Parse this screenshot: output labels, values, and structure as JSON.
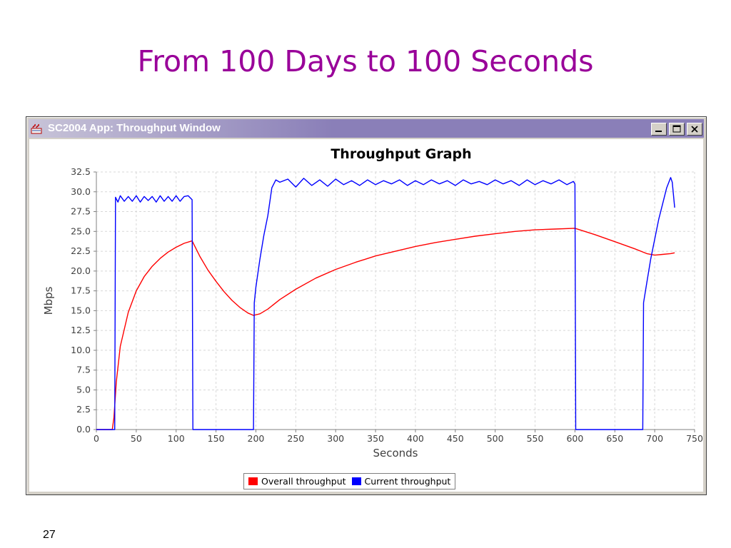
{
  "slide": {
    "title": "From 100 Days to 100 Seconds",
    "page_number": "27"
  },
  "window": {
    "title": "SC2004 App: Throughput Window",
    "icon": "java-app-icon",
    "controls": [
      "minimize",
      "maximize",
      "close"
    ]
  },
  "colors": {
    "overall": "#ff0000",
    "current": "#0000ff",
    "title_text": "#990099"
  },
  "chart_data": {
    "type": "line",
    "title": "Throughput Graph",
    "xlabel": "Seconds",
    "ylabel": "Mbps",
    "xlim": [
      0,
      750
    ],
    "ylim": [
      0,
      32.5
    ],
    "xticks": [
      "0",
      "50",
      "100",
      "150",
      "200",
      "250",
      "300",
      "350",
      "400",
      "450",
      "500",
      "550",
      "600",
      "650",
      "700",
      "750"
    ],
    "yticks": [
      "0.0",
      "2.5",
      "5.0",
      "7.5",
      "10.0",
      "12.5",
      "15.0",
      "17.5",
      "20.0",
      "22.5",
      "25.0",
      "27.5",
      "30.0",
      "32.5"
    ],
    "grid": true,
    "legend_position": "bottom-center",
    "series": [
      {
        "name": "Overall throughput",
        "color": "#ff0000",
        "x": [
          0,
          20,
          22,
          25,
          30,
          40,
          50,
          60,
          70,
          80,
          90,
          100,
          110,
          120,
          130,
          140,
          150,
          160,
          170,
          180,
          190,
          197,
          205,
          215,
          230,
          250,
          275,
          300,
          325,
          350,
          375,
          400,
          425,
          450,
          475,
          500,
          525,
          550,
          575,
          600,
          625,
          650,
          675,
          690,
          700,
          710,
          720,
          725
        ],
        "y": [
          0,
          0,
          1.5,
          6.0,
          10.5,
          14.8,
          17.5,
          19.3,
          20.6,
          21.6,
          22.4,
          23.0,
          23.5,
          23.8,
          21.8,
          20.1,
          18.7,
          17.4,
          16.3,
          15.4,
          14.7,
          14.4,
          14.6,
          15.2,
          16.4,
          17.7,
          19.1,
          20.2,
          21.1,
          21.9,
          22.5,
          23.1,
          23.6,
          24.0,
          24.4,
          24.7,
          25.0,
          25.2,
          25.3,
          25.4,
          24.6,
          23.7,
          22.8,
          22.2,
          22.0,
          22.1,
          22.2,
          22.3
        ]
      },
      {
        "name": "Current throughput",
        "color": "#0000ff",
        "x": [
          0,
          23,
          24,
          27,
          30,
          35,
          40,
          45,
          50,
          55,
          60,
          65,
          70,
          75,
          80,
          85,
          90,
          95,
          100,
          105,
          110,
          115,
          120,
          121,
          197,
          198,
          200,
          205,
          210,
          215,
          220,
          225,
          230,
          240,
          250,
          260,
          270,
          280,
          290,
          300,
          310,
          320,
          330,
          340,
          350,
          360,
          370,
          380,
          390,
          400,
          410,
          420,
          430,
          440,
          450,
          460,
          470,
          480,
          490,
          500,
          510,
          520,
          530,
          540,
          550,
          560,
          570,
          580,
          590,
          598,
          600,
          601,
          685,
          686,
          690,
          695,
          700,
          705,
          710,
          715,
          720,
          722,
          725
        ],
        "y": [
          0,
          0,
          29.3,
          28.7,
          29.5,
          28.8,
          29.4,
          28.8,
          29.5,
          28.7,
          29.4,
          28.9,
          29.4,
          28.7,
          29.5,
          28.8,
          29.4,
          28.8,
          29.5,
          28.8,
          29.4,
          29.5,
          29.0,
          0,
          0,
          16.0,
          18.0,
          21.5,
          24.5,
          27.0,
          30.5,
          31.5,
          31.2,
          31.6,
          30.6,
          31.7,
          30.8,
          31.5,
          30.7,
          31.6,
          30.9,
          31.4,
          30.8,
          31.5,
          30.9,
          31.4,
          31.0,
          31.5,
          30.8,
          31.4,
          30.9,
          31.5,
          31.0,
          31.4,
          30.8,
          31.5,
          31.0,
          31.3,
          30.9,
          31.5,
          31.0,
          31.4,
          30.8,
          31.5,
          30.9,
          31.4,
          31.0,
          31.5,
          30.9,
          31.3,
          31.0,
          0,
          0,
          16.0,
          18.5,
          21.5,
          24.0,
          26.5,
          28.5,
          30.5,
          31.8,
          31.2,
          28.0
        ]
      }
    ]
  }
}
